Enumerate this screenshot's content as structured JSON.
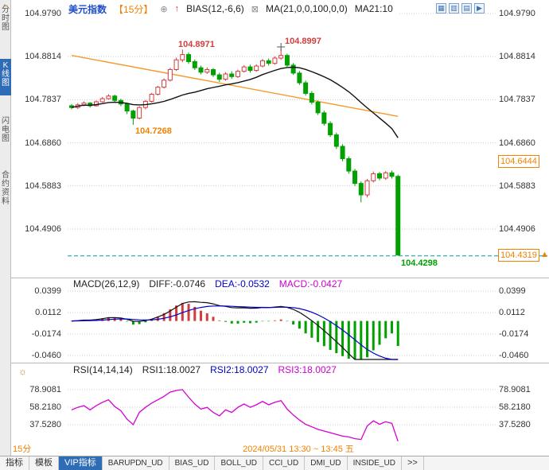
{
  "sidebar": {
    "items": [
      {
        "label": "分时图"
      },
      {
        "label": "K线图",
        "active": true
      },
      {
        "label": "闪电图"
      },
      {
        "label": "合约资料"
      }
    ]
  },
  "icons": {
    "corner": "◔",
    "plus": "⊕",
    "bias": "↑",
    "ma": "⊠",
    "rsi_panel": "☼",
    "pointer": "▲",
    "layout": [
      "▦",
      "▥",
      "▤",
      "▶"
    ]
  },
  "header": {
    "symbol": "美元指数",
    "period": "【15分】",
    "bias": "BIAS(12,-6,6)",
    "ma": "MA(21,0,0,100,0,0)",
    "ma21": "MA21:10"
  },
  "main_axis": {
    "labels": [
      "104.9790",
      "104.8814",
      "104.7837",
      "104.6860",
      "104.5883",
      "104.4906"
    ]
  },
  "badges": {
    "ma_value": "104.6444",
    "last_price": "104.4319"
  },
  "annotations": {
    "high1": "104.8971",
    "high2": "104.8997",
    "low1": "104.7268",
    "last": "104.4298"
  },
  "macd_panel": {
    "title": "MACD(26,12,9)",
    "diff": "DIFF:-0.0746",
    "dea": "DEA:-0.0532",
    "macd": "MACD:-0.0427",
    "axis": [
      "0.0399",
      "0.0112",
      "-0.0174",
      "-0.0460"
    ]
  },
  "rsi_panel": {
    "title": "RSI(14,14,14)",
    "rsi1": "RSI1:18.0027",
    "rsi2": "RSI2:18.0027",
    "rsi3": "RSI3:18.0027",
    "axis": [
      "78.9081",
      "58.2180",
      "37.5280"
    ]
  },
  "footer": {
    "period": "15分",
    "timestamp": "2024/05/31 13:30 ~ 13:45 五"
  },
  "tabs": {
    "items": [
      {
        "label": "指标"
      },
      {
        "label": "模板"
      },
      {
        "label": "VIP指标",
        "active": true
      },
      {
        "label": "BARUPDN_UD"
      },
      {
        "label": "BIAS_UD"
      },
      {
        "label": "BOLL_UD"
      },
      {
        "label": "CCI_UD"
      },
      {
        "label": "DMI_UD"
      },
      {
        "label": "INSIDE_UD"
      },
      {
        "label": ">>"
      }
    ]
  },
  "colors": {
    "up": "#d43c3c",
    "down": "#00a000",
    "ma21": "#111111",
    "ma100": "#f49a2c",
    "diff": "#111111",
    "dea": "#0000c8",
    "rsi": "#d400d4",
    "accent_orange": "#f08200",
    "last_line": "#00a0a0",
    "grid": "#cccccc",
    "separator": "#b8b8b8",
    "active_tab": "#2e6cb5"
  },
  "chart_data": {
    "type": "candlestick",
    "symbol": "美元指数",
    "period": "15分",
    "y_axis": [
      104.979,
      104.8814,
      104.7837,
      104.686,
      104.5883,
      104.4906
    ],
    "ohlc_format": "[open,high,low,close]",
    "candles": [
      [
        104.77,
        104.774,
        104.762,
        104.766
      ],
      [
        104.766,
        104.776,
        104.763,
        104.772
      ],
      [
        104.772,
        104.78,
        104.769,
        104.776
      ],
      [
        104.776,
        104.778,
        104.766,
        104.77
      ],
      [
        104.77,
        104.782,
        104.768,
        104.779
      ],
      [
        104.779,
        104.79,
        104.777,
        104.786
      ],
      [
        104.786,
        104.796,
        104.784,
        104.792
      ],
      [
        104.792,
        104.795,
        104.778,
        104.782
      ],
      [
        104.782,
        104.786,
        104.769,
        104.774
      ],
      [
        104.774,
        104.777,
        104.751,
        104.758
      ],
      [
        104.758,
        104.761,
        104.7268,
        104.742
      ],
      [
        104.742,
        104.769,
        104.739,
        104.766
      ],
      [
        104.766,
        104.783,
        104.762,
        104.78
      ],
      [
        104.78,
        104.799,
        104.777,
        104.796
      ],
      [
        104.796,
        104.815,
        104.793,
        104.812
      ],
      [
        104.812,
        104.832,
        104.809,
        104.828
      ],
      [
        104.828,
        104.856,
        104.825,
        104.852
      ],
      [
        104.852,
        104.879,
        104.849,
        104.874
      ],
      [
        104.874,
        104.8971,
        104.869,
        104.886
      ],
      [
        104.886,
        104.891,
        104.865,
        104.87
      ],
      [
        104.87,
        104.875,
        104.851,
        104.856
      ],
      [
        104.856,
        104.861,
        104.841,
        104.846
      ],
      [
        104.846,
        104.857,
        104.842,
        104.852
      ],
      [
        104.852,
        104.855,
        104.835,
        104.84
      ],
      [
        104.84,
        104.845,
        104.824,
        104.83
      ],
      [
        104.83,
        104.846,
        104.827,
        104.842
      ],
      [
        104.842,
        104.848,
        104.831,
        104.836
      ],
      [
        104.836,
        104.852,
        104.833,
        104.848
      ],
      [
        104.848,
        104.862,
        104.845,
        104.858
      ],
      [
        104.858,
        104.863,
        104.845,
        104.85
      ],
      [
        104.85,
        104.864,
        104.847,
        104.86
      ],
      [
        104.86,
        104.876,
        104.857,
        104.872
      ],
      [
        104.872,
        104.877,
        104.861,
        104.866
      ],
      [
        104.866,
        104.882,
        104.863,
        104.878
      ],
      [
        104.878,
        104.8997,
        104.874,
        104.884
      ],
      [
        104.884,
        104.888,
        104.858,
        104.862
      ],
      [
        104.862,
        104.867,
        104.84,
        104.844
      ],
      [
        104.844,
        104.849,
        104.817,
        104.822
      ],
      [
        104.822,
        104.827,
        104.793,
        104.798
      ],
      [
        104.798,
        104.803,
        104.773,
        104.778
      ],
      [
        104.778,
        104.782,
        104.749,
        104.754
      ],
      [
        104.754,
        104.759,
        104.725,
        104.73
      ],
      [
        104.73,
        104.735,
        104.699,
        104.704
      ],
      [
        104.704,
        104.709,
        104.672,
        104.678
      ],
      [
        104.678,
        104.683,
        104.644,
        104.65
      ],
      [
        104.65,
        104.655,
        104.616,
        104.622
      ],
      [
        104.622,
        104.627,
        104.588,
        104.594
      ],
      [
        104.594,
        104.599,
        104.551,
        104.568
      ],
      [
        104.568,
        104.604,
        104.562,
        104.6
      ],
      [
        104.6,
        104.621,
        104.596,
        104.616
      ],
      [
        104.616,
        104.62,
        104.601,
        104.606
      ],
      [
        104.606,
        104.622,
        104.602,
        104.618
      ],
      [
        104.618,
        104.623,
        104.605,
        104.61
      ],
      [
        104.61,
        104.614,
        104.4298,
        104.4319
      ]
    ],
    "ma100_trend": {
      "start": 104.884,
      "end": 104.746
    },
    "last_price": 104.4298,
    "last_close": 104.4319,
    "ma_badge_value": 104.6444,
    "macd": {
      "params": [
        26,
        12,
        9
      ],
      "diff": -0.0746,
      "dea": -0.0532,
      "macd": -0.0427,
      "y_axis": [
        0.0399,
        0.0112,
        -0.0174,
        -0.046
      ]
    },
    "rsi": {
      "params": [
        14,
        14,
        14
      ],
      "rsi1": 18.0027,
      "rsi2": 18.0027,
      "rsi3": 18.0027,
      "y_axis": [
        78.9081,
        58.218,
        37.528
      ],
      "values": [
        55,
        58,
        60,
        55,
        60,
        64,
        67,
        59,
        54,
        44,
        37.5,
        52,
        58,
        63,
        67,
        71,
        76,
        78,
        79,
        70,
        62,
        56,
        58,
        52,
        48,
        55,
        52,
        58,
        62,
        58,
        61,
        65,
        61,
        64,
        66,
        56,
        49,
        43,
        38,
        35,
        32,
        30,
        28,
        26,
        24,
        23,
        21,
        20,
        36,
        42,
        38,
        41,
        39,
        18
      ]
    },
    "time_range": "2024/05/31 13:30 ~ 13:45 五"
  }
}
